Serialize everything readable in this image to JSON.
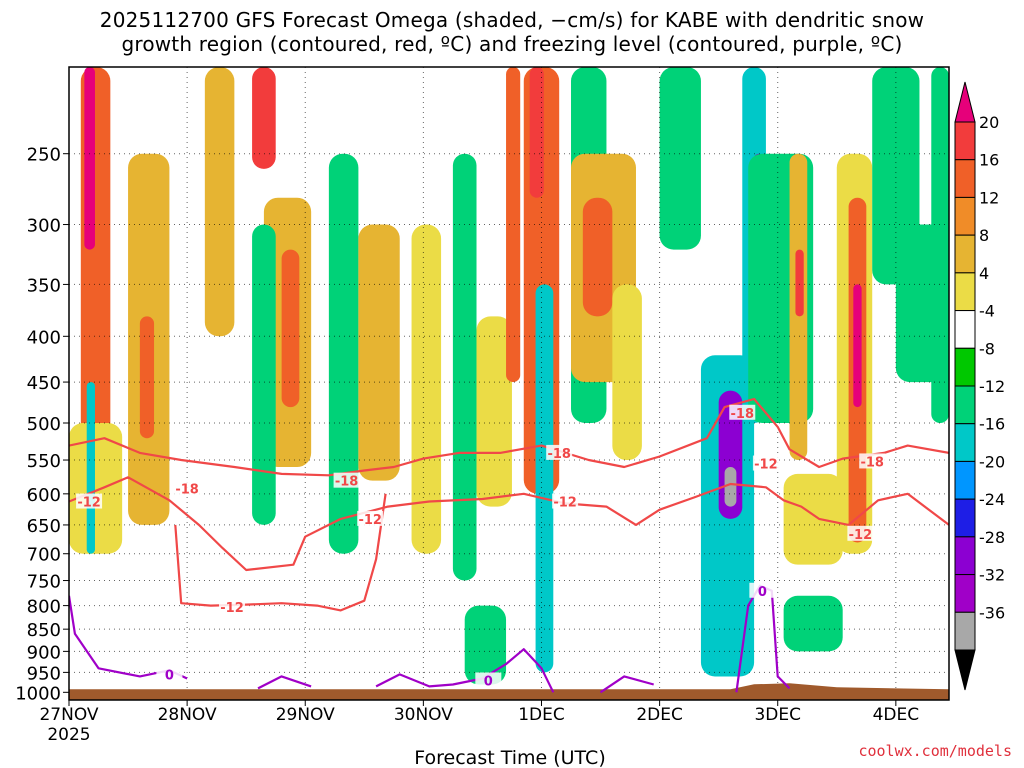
{
  "header": {
    "title_line1": "2025112700 GFS Forecast Omega (shaded, −cm/s) for KABE with dendritic snow",
    "title_line2": "growth region (contoured, red, ºC) and freezing level (contoured, purple, ºC)"
  },
  "footer": {
    "credit": "coolwx.com/models"
  },
  "chart_data": {
    "type": "heatmap",
    "title": "2025112700 GFS Forecast Omega (shaded, −cm/s) for KABE with dendritic snow growth region (contoured, red, ºC) and freezing level (contoured, purple, ºC)",
    "xlabel": "Forecast Time (UTC)",
    "ylabel": "",
    "xlim": [
      0,
      7.45
    ],
    "ylim": [
      200,
      1020
    ],
    "y_scale": "log-pressure",
    "grid": true,
    "x_ticks": [
      {
        "x": 0,
        "label": "27NOV",
        "sub": "2025"
      },
      {
        "x": 1,
        "label": "28NOV"
      },
      {
        "x": 2,
        "label": "29NOV"
      },
      {
        "x": 3,
        "label": "30NOV"
      },
      {
        "x": 4,
        "label": "1DEC"
      },
      {
        "x": 5,
        "label": "2DEC"
      },
      {
        "x": 6,
        "label": "3DEC"
      },
      {
        "x": 7,
        "label": "4DEC"
      }
    ],
    "y_ticks": [
      250,
      300,
      350,
      400,
      450,
      500,
      550,
      600,
      650,
      700,
      750,
      800,
      850,
      900,
      950,
      1000
    ],
    "colorbar": {
      "labels": [
        20,
        16,
        12,
        8,
        4,
        -4,
        -8,
        -12,
        -16,
        -20,
        -24,
        -28,
        -32,
        -36
      ],
      "colors": [
        "#e6007a",
        "#f23c3c",
        "#f06028",
        "#f08c28",
        "#e6b432",
        "#ebdc46",
        "#ffffff",
        "#00c800",
        "#00d278",
        "#00c8c8",
        "#0096ff",
        "#1e1ee6",
        "#8c00d2",
        "#a000c8",
        "#a8a8a8",
        "#000000"
      ]
    },
    "omega_cells": [
      {
        "t0": 0.1,
        "t1": 0.35,
        "p0": 200,
        "p1": 520,
        "v": 12
      },
      {
        "t0": 0.13,
        "t1": 0.22,
        "p0": 200,
        "p1": 320,
        "v": 20
      },
      {
        "t0": 0.0,
        "t1": 0.45,
        "p0": 500,
        "p1": 700,
        "v": 6
      },
      {
        "t0": 0.15,
        "t1": 0.22,
        "p0": 450,
        "p1": 700,
        "v": -12
      },
      {
        "t0": 0.5,
        "t1": 0.85,
        "p0": 250,
        "p1": 650,
        "v": 8
      },
      {
        "t0": 0.6,
        "t1": 0.72,
        "p0": 380,
        "p1": 520,
        "v": 12
      },
      {
        "t0": 1.15,
        "t1": 1.4,
        "p0": 200,
        "p1": 400,
        "v": 8
      },
      {
        "t0": 1.55,
        "t1": 1.75,
        "p0": 200,
        "p1": 260,
        "v": 16
      },
      {
        "t0": 1.65,
        "t1": 2.05,
        "p0": 280,
        "p1": 560,
        "v": 10
      },
      {
        "t0": 1.8,
        "t1": 1.95,
        "p0": 320,
        "p1": 480,
        "v": 14
      },
      {
        "t0": 1.55,
        "t1": 1.75,
        "p0": 300,
        "p1": 650,
        "v": -8
      },
      {
        "t0": 2.2,
        "t1": 2.45,
        "p0": 250,
        "p1": 700,
        "v": -8
      },
      {
        "t0": 2.45,
        "t1": 2.8,
        "p0": 300,
        "p1": 580,
        "v": 10
      },
      {
        "t0": 2.9,
        "t1": 3.15,
        "p0": 300,
        "p1": 700,
        "v": 6
      },
      {
        "t0": 3.25,
        "t1": 3.45,
        "p0": 250,
        "p1": 750,
        "v": -8
      },
      {
        "t0": 3.45,
        "t1": 3.75,
        "p0": 380,
        "p1": 620,
        "v": 6
      },
      {
        "t0": 3.7,
        "t1": 3.82,
        "p0": 200,
        "p1": 450,
        "v": 14
      },
      {
        "t0": 3.85,
        "t1": 4.15,
        "p0": 200,
        "p1": 600,
        "v": 12
      },
      {
        "t0": 3.9,
        "t1": 4.02,
        "p0": 200,
        "p1": 280,
        "v": 18
      },
      {
        "t0": 3.95,
        "t1": 4.1,
        "p0": 350,
        "p1": 950,
        "v": -12
      },
      {
        "t0": 3.35,
        "t1": 3.7,
        "p0": 800,
        "p1": 980,
        "v": -8
      },
      {
        "t0": 4.25,
        "t1": 4.55,
        "p0": 200,
        "p1": 500,
        "v": -8
      },
      {
        "t0": 4.25,
        "t1": 4.8,
        "p0": 250,
        "p1": 450,
        "v": 10
      },
      {
        "t0": 4.35,
        "t1": 4.6,
        "p0": 280,
        "p1": 380,
        "v": 14
      },
      {
        "t0": 4.6,
        "t1": 4.85,
        "p0": 350,
        "p1": 550,
        "v": 6
      },
      {
        "t0": 5.0,
        "t1": 5.35,
        "p0": 200,
        "p1": 320,
        "v": -8
      },
      {
        "t0": 5.35,
        "t1": 5.8,
        "p0": 420,
        "p1": 960,
        "v": -14
      },
      {
        "t0": 5.5,
        "t1": 5.7,
        "p0": 460,
        "p1": 640,
        "v": -24
      },
      {
        "t0": 5.55,
        "t1": 5.65,
        "p0": 560,
        "p1": 620,
        "v": -34
      },
      {
        "t0": 5.7,
        "t1": 5.9,
        "p0": 200,
        "p1": 500,
        "v": -12
      },
      {
        "t0": 5.8,
        "t1": 5.88,
        "p0": 250,
        "p1": 400,
        "v": -28
      },
      {
        "t0": 5.75,
        "t1": 6.3,
        "p0": 250,
        "p1": 500,
        "v": -8
      },
      {
        "t0": 6.1,
        "t1": 6.25,
        "p0": 250,
        "p1": 550,
        "v": 10
      },
      {
        "t0": 6.15,
        "t1": 6.22,
        "p0": 320,
        "p1": 380,
        "v": 16
      },
      {
        "t0": 6.05,
        "t1": 6.55,
        "p0": 570,
        "p1": 720,
        "v": 6
      },
      {
        "t0": 6.05,
        "t1": 6.55,
        "p0": 780,
        "p1": 900,
        "v": -8
      },
      {
        "t0": 6.5,
        "t1": 6.8,
        "p0": 250,
        "p1": 700,
        "v": 6
      },
      {
        "t0": 6.6,
        "t1": 6.75,
        "p0": 280,
        "p1": 680,
        "v": 14
      },
      {
        "t0": 6.64,
        "t1": 6.71,
        "p0": 350,
        "p1": 480,
        "v": 20
      },
      {
        "t0": 6.8,
        "t1": 7.2,
        "p0": 200,
        "p1": 350,
        "v": -8
      },
      {
        "t0": 7.0,
        "t1": 7.45,
        "p0": 300,
        "p1": 450,
        "v": -8
      },
      {
        "t0": 7.3,
        "t1": 7.45,
        "p0": 200,
        "p1": 500,
        "v": -8
      }
    ],
    "contours": [
      {
        "name": "-18",
        "color": "#f04848",
        "points": [
          [
            0.0,
            530
          ],
          [
            0.3,
            520
          ],
          [
            0.6,
            540
          ],
          [
            0.95,
            550
          ],
          [
            1.4,
            560
          ],
          [
            1.8,
            570
          ],
          [
            2.2,
            572
          ],
          [
            2.5,
            565
          ],
          [
            2.75,
            560
          ],
          [
            3.0,
            548
          ],
          [
            3.3,
            540
          ],
          [
            3.65,
            540
          ],
          [
            4.0,
            530
          ],
          [
            4.4,
            550
          ],
          [
            4.7,
            560
          ],
          [
            5.0,
            545
          ],
          [
            5.4,
            520
          ],
          [
            5.55,
            480
          ],
          [
            5.8,
            470
          ],
          [
            6.0,
            505
          ],
          [
            6.1,
            535
          ],
          [
            6.35,
            560
          ],
          [
            6.55,
            548
          ],
          [
            6.9,
            540
          ],
          [
            7.1,
            530
          ],
          [
            7.45,
            540
          ]
        ]
      },
      {
        "name": "-12",
        "color": "#f04848",
        "points": [
          [
            0.0,
            612
          ],
          [
            0.3,
            590
          ],
          [
            0.5,
            575
          ],
          [
            0.85,
            610
          ],
          [
            1.1,
            650
          ],
          [
            1.3,
            690
          ],
          [
            1.5,
            730
          ],
          [
            1.9,
            720
          ],
          [
            2.0,
            670
          ],
          [
            2.3,
            640
          ],
          [
            2.7,
            620
          ],
          [
            3.05,
            612
          ],
          [
            3.5,
            608
          ],
          [
            3.85,
            600
          ],
          [
            4.2,
            615
          ],
          [
            4.55,
            620
          ],
          [
            4.8,
            650
          ],
          [
            5.0,
            625
          ],
          [
            5.3,
            605
          ],
          [
            5.6,
            585
          ],
          [
            5.9,
            590
          ],
          [
            6.05,
            610
          ],
          [
            6.2,
            620
          ],
          [
            6.35,
            640
          ],
          [
            6.6,
            650
          ],
          [
            6.85,
            610
          ],
          [
            7.1,
            600
          ],
          [
            7.45,
            650
          ]
        ]
      },
      {
        "name": "-12b",
        "color": "#f04848",
        "points": [
          [
            0.9,
            650
          ],
          [
            0.95,
            795
          ],
          [
            1.2,
            800
          ],
          [
            1.5,
            798
          ],
          [
            1.8,
            795
          ],
          [
            2.1,
            800
          ],
          [
            2.3,
            810
          ],
          [
            2.5,
            790
          ],
          [
            2.6,
            710
          ],
          [
            2.68,
            600
          ]
        ]
      },
      {
        "name": "0",
        "color": "#a000c8",
        "points": [
          [
            0.0,
            780
          ],
          [
            0.05,
            860
          ],
          [
            0.25,
            940
          ],
          [
            0.6,
            960
          ],
          [
            0.85,
            945
          ],
          [
            1.0,
            965
          ]
        ]
      },
      {
        "name": "0b",
        "color": "#a000c8",
        "points": [
          [
            1.6,
            990
          ],
          [
            1.8,
            960
          ],
          [
            2.05,
            985
          ]
        ]
      },
      {
        "name": "0c",
        "color": "#a000c8",
        "points": [
          [
            2.6,
            985
          ],
          [
            2.8,
            955
          ],
          [
            3.05,
            985
          ],
          [
            3.25,
            980
          ],
          [
            3.5,
            965
          ],
          [
            3.7,
            930
          ],
          [
            3.85,
            895
          ],
          [
            4.0,
            940
          ],
          [
            4.1,
            1000
          ]
        ]
      },
      {
        "name": "0d",
        "color": "#a000c8",
        "points": [
          [
            4.5,
            1000
          ],
          [
            4.7,
            960
          ],
          [
            4.95,
            980
          ]
        ]
      },
      {
        "name": "0e",
        "color": "#a000c8",
        "points": [
          [
            5.65,
            1000
          ],
          [
            5.75,
            800
          ],
          [
            5.85,
            760
          ],
          [
            5.95,
            770
          ],
          [
            6.0,
            960
          ],
          [
            6.1,
            990
          ]
        ]
      }
    ],
    "contour_labels": [
      {
        "text": "-18",
        "t": 1.0,
        "p": 592
      },
      {
        "text": "-18",
        "t": 2.35,
        "p": 580
      },
      {
        "text": "-18",
        "t": 4.15,
        "p": 540
      },
      {
        "text": "-18",
        "t": 5.7,
        "p": 487
      },
      {
        "text": "-18",
        "t": 6.8,
        "p": 552
      },
      {
        "text": "-12",
        "t": 0.17,
        "p": 612
      },
      {
        "text": "-12",
        "t": 1.38,
        "p": 803
      },
      {
        "text": "-12",
        "t": 2.55,
        "p": 640
      },
      {
        "text": "-12",
        "t": 4.2,
        "p": 612
      },
      {
        "text": "-12",
        "t": 5.9,
        "p": 555
      },
      {
        "text": "-12",
        "t": 6.7,
        "p": 665
      },
      {
        "text": "0",
        "t": 0.85,
        "p": 955
      },
      {
        "text": "0",
        "t": 3.55,
        "p": 970
      },
      {
        "text": "0",
        "t": 5.87,
        "p": 770
      }
    ]
  }
}
